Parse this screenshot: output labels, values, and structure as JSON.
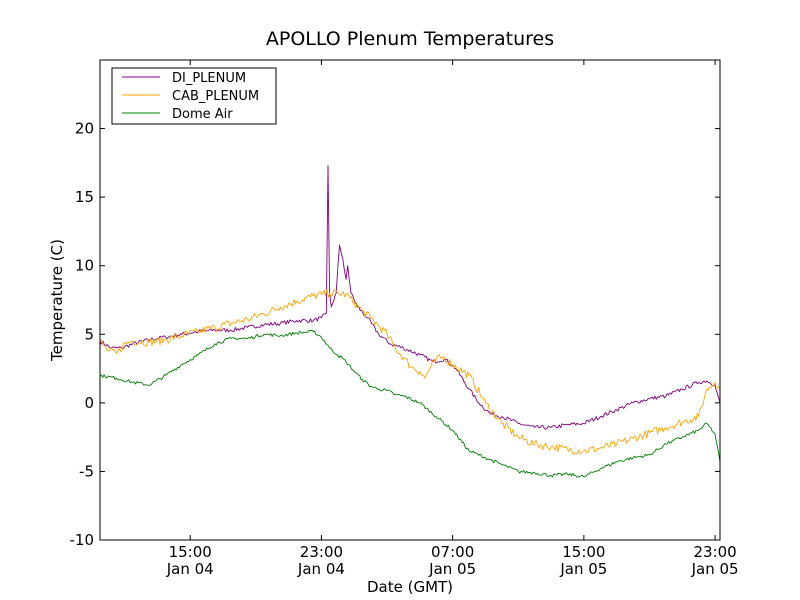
{
  "chart_data": {
    "type": "line",
    "title": "APOLLO Plenum Temperatures",
    "xlabel": "Date (GMT)",
    "ylabel": "Temperature (C)",
    "ylim": [
      -10,
      25
    ],
    "xlim": [
      9.5,
      47.3
    ],
    "yticks": [
      {
        "value": -10,
        "label": "-10"
      },
      {
        "value": -5,
        "label": "-5"
      },
      {
        "value": 0,
        "label": "0"
      },
      {
        "value": 5,
        "label": "5"
      },
      {
        "value": 10,
        "label": "10"
      },
      {
        "value": 15,
        "label": "15"
      },
      {
        "value": 20,
        "label": "20"
      }
    ],
    "xticks": [
      {
        "value": 15,
        "label": "15:00",
        "sublabel": "Jan 04"
      },
      {
        "value": 23,
        "label": "23:00",
        "sublabel": "Jan 04"
      },
      {
        "value": 31,
        "label": "07:00",
        "sublabel": "Jan 05"
      },
      {
        "value": 39,
        "label": "15:00",
        "sublabel": "Jan 05"
      },
      {
        "value": 47,
        "label": "23:00",
        "sublabel": "Jan 05"
      }
    ],
    "x_units": "hours since Jan 04 00:00 GMT",
    "legend_position": "upper-left",
    "series": [
      {
        "name": "DI_PLENUM",
        "color": "#800080",
        "noise": 0.15,
        "x": [
          9.5,
          10.2,
          10.8,
          11.5,
          12.5,
          13.5,
          14.5,
          15.5,
          16.5,
          17.5,
          18.5,
          19.5,
          20.5,
          21.5,
          22.5,
          23.0,
          23.3,
          23.4,
          23.5,
          23.6,
          23.9,
          24.1,
          24.3,
          24.5,
          24.6,
          24.8,
          25.2,
          25.8,
          26.5,
          27.2,
          28.0,
          29.0,
          29.8,
          30.5,
          31.2,
          32.0,
          32.6,
          33.3,
          34.0,
          35.0,
          36.0,
          37.0,
          38.0,
          39.0,
          40.0,
          41.0,
          42.0,
          43.0,
          44.0,
          45.0,
          46.0,
          46.5,
          47.0,
          47.3
        ],
        "values": [
          4.5,
          4.0,
          4.0,
          4.3,
          4.6,
          4.8,
          5.0,
          5.2,
          5.3,
          5.3,
          5.5,
          5.7,
          5.8,
          6.0,
          6.0,
          6.2,
          6.5,
          17.3,
          8.0,
          7.0,
          8.0,
          11.5,
          10.5,
          9.0,
          10.0,
          8.0,
          7.0,
          6.2,
          5.0,
          4.3,
          4.0,
          3.5,
          3.0,
          3.2,
          2.5,
          1.0,
          0.0,
          -0.8,
          -1.0,
          -1.5,
          -1.8,
          -1.8,
          -1.6,
          -1.5,
          -1.0,
          -0.5,
          0.0,
          0.3,
          0.5,
          1.0,
          1.5,
          1.6,
          1.3,
          0.0
        ]
      },
      {
        "name": "CAB_PLENUM",
        "color": "#ffa500",
        "noise": 0.3,
        "x": [
          9.5,
          10.0,
          10.5,
          11.0,
          11.5,
          12.5,
          13.5,
          14.5,
          15.5,
          16.5,
          17.5,
          18.5,
          19.5,
          20.5,
          21.5,
          22.5,
          23.0,
          23.5,
          24.0,
          24.5,
          25.0,
          25.5,
          26.0,
          26.5,
          27.0,
          27.5,
          28.0,
          28.5,
          29.0,
          29.3,
          29.6,
          30.0,
          30.5,
          31.0,
          32.0,
          33.0,
          34.0,
          35.0,
          36.0,
          37.0,
          38.0,
          39.0,
          40.0,
          41.0,
          42.0,
          43.0,
          44.0,
          45.0,
          46.0,
          46.5,
          47.0,
          47.3
        ],
        "values": [
          4.5,
          3.8,
          3.6,
          4.3,
          4.5,
          4.4,
          4.6,
          4.9,
          5.2,
          5.5,
          5.8,
          6.1,
          6.5,
          7.0,
          7.4,
          7.8,
          7.9,
          8.0,
          8.0,
          7.9,
          7.3,
          6.7,
          6.2,
          5.6,
          5.0,
          4.0,
          3.3,
          2.6,
          2.3,
          1.8,
          2.5,
          3.2,
          3.3,
          2.8,
          2.0,
          0.0,
          -1.5,
          -2.5,
          -3.0,
          -3.2,
          -3.4,
          -3.5,
          -3.3,
          -3.0,
          -2.6,
          -2.2,
          -1.8,
          -1.4,
          -1.0,
          1.0,
          1.5,
          1.0
        ]
      },
      {
        "name": "Dome Air",
        "color": "#008000",
        "noise": 0.12,
        "x": [
          9.5,
          10.5,
          11.5,
          12.5,
          13.5,
          14.5,
          15.5,
          16.5,
          17.5,
          18.5,
          19.5,
          20.5,
          21.5,
          22.5,
          23.0,
          23.5,
          24.0,
          24.5,
          25.0,
          25.5,
          26.0,
          26.5,
          27.0,
          27.5,
          28.0,
          29.0,
          30.0,
          31.0,
          32.0,
          33.0,
          34.0,
          35.0,
          36.0,
          37.0,
          38.0,
          39.0,
          40.0,
          41.0,
          42.0,
          43.0,
          44.0,
          45.0,
          46.0,
          46.5,
          47.0,
          47.3
        ],
        "values": [
          2.0,
          1.8,
          1.5,
          1.3,
          2.0,
          2.8,
          3.5,
          4.3,
          4.7,
          4.7,
          5.0,
          4.9,
          5.1,
          5.2,
          4.8,
          4.0,
          3.5,
          3.0,
          2.3,
          1.7,
          1.2,
          1.0,
          0.9,
          0.6,
          0.5,
          0.0,
          -1.0,
          -2.0,
          -3.5,
          -4.0,
          -4.5,
          -5.0,
          -5.1,
          -5.3,
          -5.2,
          -5.4,
          -4.8,
          -4.3,
          -4.0,
          -3.8,
          -3.0,
          -2.5,
          -2.0,
          -1.5,
          -2.3,
          -4.3
        ]
      }
    ]
  }
}
